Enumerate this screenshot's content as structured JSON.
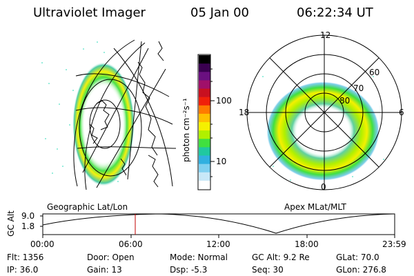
{
  "header": {
    "instrument": "Ultraviolet Imager",
    "date": "05 Jan 00",
    "time": "06:22:34 UT"
  },
  "colorbar": {
    "unit_label": "photon cm⁻²s⁻¹",
    "ticks": [
      "100",
      "10"
    ],
    "colors": [
      "#000000",
      "#3a0050",
      "#6a1080",
      "#a0106a",
      "#c81020",
      "#f0200a",
      "#ff7a00",
      "#ffc000",
      "#f5f000",
      "#b0f000",
      "#40e040",
      "#20c8a0",
      "#30b0e0",
      "#80d0f0",
      "#c8e8f8",
      "#ffffff"
    ]
  },
  "geo_panel": {
    "label": "Geographic Lat/Lon"
  },
  "polar_panel": {
    "label": "Apex  MLat/MLT",
    "mlt_labels": [
      "12",
      "18",
      "6",
      "0"
    ],
    "lat_labels": [
      "60",
      "70",
      "80"
    ]
  },
  "altitude_plot": {
    "ylabel": "GC Alt",
    "yticks": [
      "9.0",
      "1.8"
    ],
    "xticks": [
      "00:00",
      "06:00",
      "12:00",
      "18:00",
      "23:59"
    ],
    "marker_color": "#c00000"
  },
  "info": {
    "flt": "Flt: 1356",
    "ip": "IP: 36.0",
    "door": "Door: Open",
    "gain": "Gain: 13",
    "mode": "Mode: Normal",
    "dsp": "Dsp:    -5.3",
    "gcalt": "GC Alt: 9.2 Re",
    "seq": "Seq: 30",
    "glat": "GLat:  70.0",
    "glon": "GLon: 276.8"
  }
}
